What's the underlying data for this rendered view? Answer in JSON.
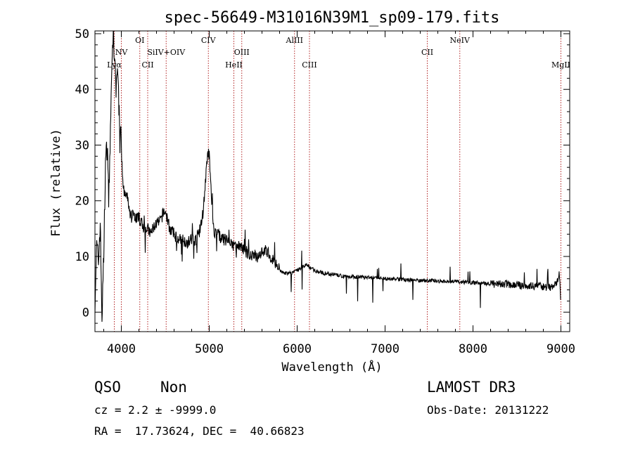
{
  "chart_data": {
    "type": "line",
    "title": "spec-56649-M31016N39M1_sp09-179.fits",
    "xlabel": "Wavelength (Å)",
    "ylabel": "Flux (relative)",
    "xlim": [
      3700,
      9100
    ],
    "ylim": [
      -3.5,
      50.5
    ],
    "xticks": [
      4000,
      5000,
      6000,
      7000,
      8000,
      9000
    ],
    "yticks": [
      0,
      10,
      20,
      30,
      40,
      50
    ],
    "series": [
      {
        "x": [
          3700,
          3720,
          3740,
          3760,
          3780,
          3800,
          3820,
          3840,
          3860,
          3880,
          3900,
          3910,
          3920,
          3930,
          3940,
          3950,
          3960,
          3970,
          3980,
          3990,
          4000,
          4010,
          4020,
          4030,
          4050,
          4080,
          4100,
          4130,
          4160,
          4200,
          4230,
          4260,
          4300,
          4330,
          4360,
          4400,
          4430,
          4460,
          4480,
          4500,
          4520,
          4550,
          4600,
          4650,
          4700,
          4750,
          4800,
          4850,
          4900,
          4930,
          4950,
          4970,
          4990,
          5000,
          5020,
          5040,
          5060,
          5100,
          5150,
          5200,
          5250,
          5300,
          5350,
          5400,
          5450,
          5500,
          5550,
          5600,
          5650,
          5700,
          5750,
          5800,
          5850,
          5900,
          5950,
          6000,
          6050,
          6100,
          6150,
          6200,
          6300,
          6400,
          6500,
          6600,
          6700,
          6800,
          6900,
          7000,
          7100,
          7200,
          7300,
          7400,
          7500,
          7600,
          7700,
          7800,
          7900,
          8000,
          8100,
          8200,
          8300,
          8400,
          8500,
          8600,
          8700,
          8800,
          8850,
          8900,
          8950,
          8980,
          9000
        ],
        "y": [
          2,
          12,
          9,
          16,
          -1,
          10,
          27,
          30,
          22,
          35,
          47,
          51,
          43,
          45,
          40,
          44,
          42,
          38,
          35,
          33,
          30,
          25,
          23,
          21,
          21,
          20,
          17,
          18,
          17,
          17,
          16,
          15,
          15,
          14,
          15,
          16,
          16,
          17,
          18,
          18,
          17,
          15,
          14,
          13,
          13,
          12.5,
          13,
          13,
          15,
          18,
          22,
          26,
          29,
          28,
          22,
          17,
          14,
          14,
          13,
          13,
          12,
          12,
          12,
          11,
          10.5,
          10,
          10,
          11,
          11,
          10,
          9,
          7.5,
          7,
          7,
          7,
          7.5,
          8,
          8.5,
          8,
          7.5,
          7,
          6.8,
          6.5,
          6.4,
          6.3,
          6.2,
          6.1,
          6,
          6,
          5.8,
          5.8,
          5.7,
          5.7,
          5.6,
          5.5,
          5.5,
          5.4,
          5.3,
          5.2,
          5.1,
          5,
          5,
          4.8,
          4.8,
          4.7,
          4.6,
          4.5,
          4.5,
          5,
          7,
          2
        ]
      }
    ],
    "lines": [
      {
        "label": "Lyα",
        "x": 3920,
        "row": 2
      },
      {
        "label": "NV",
        "x": 4000,
        "row": 1
      },
      {
        "label": "OI",
        "x": 4210,
        "row": 0
      },
      {
        "label": "CII",
        "x": 4300,
        "row": 2
      },
      {
        "label": "SiIV+OIV",
        "x": 4510,
        "row": 1
      },
      {
        "label": "CIV",
        "x": 4990,
        "row": 0
      },
      {
        "label": "HeII",
        "x": 5280,
        "row": 2
      },
      {
        "label": "OIII",
        "x": 5370,
        "row": 1
      },
      {
        "label": "AlIII",
        "x": 5970,
        "row": 0
      },
      {
        "label": "CIII",
        "x": 6140,
        "row": 2
      },
      {
        "label": "CII",
        "x": 7480,
        "row": 1
      },
      {
        "label": "NeIV",
        "x": 7850,
        "row": 0
      },
      {
        "label": "MgII",
        "x": 9000,
        "row": 2
      }
    ]
  },
  "info": {
    "class": "QSO",
    "subclass": "Non",
    "survey": "LAMOST DR3",
    "cz": "cz = 2.2 ± -9999.0",
    "obs_date": "Obs-Date: 20131222",
    "coords": "RA =  17.73624, DEC =  40.66823"
  }
}
